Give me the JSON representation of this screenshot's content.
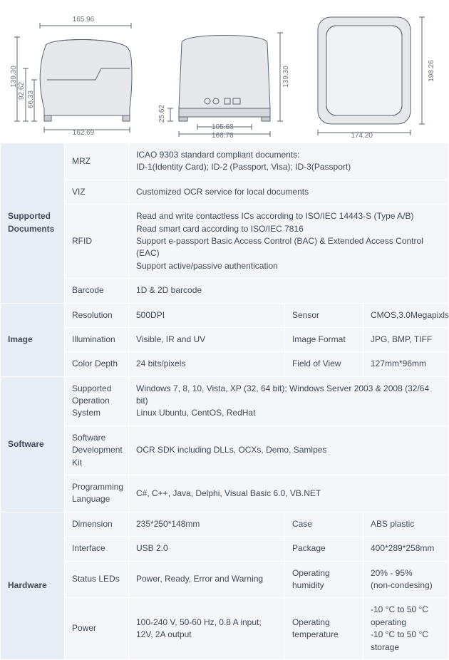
{
  "colors": {
    "cat_bg": "#e8eef5",
    "cell_bg": "#f4f6fa",
    "border": "#ffffff",
    "text": "#414b57",
    "dim_text": "#6b7280",
    "stroke": "#5a6470"
  },
  "diagrams": {
    "side": {
      "top_width": "165.96",
      "bottom_width": "162.69",
      "full_height": "139.30",
      "mid_height": "92.62",
      "inner_height": "66.33"
    },
    "front": {
      "full_width": "166.76",
      "inner_width": "105.68",
      "full_height": "139.30",
      "foot_height": "25.62"
    },
    "top": {
      "width": "174.20",
      "height": "198.26"
    }
  },
  "spec": {
    "supported_documents": {
      "cat": "Supported Documents",
      "mrz_k": "MRZ",
      "mrz_v": "ICAO 9303 standard compliant documents:\nID-1(Identity Card); ID-2 (Passport, Visa); ID-3(Passport)",
      "viz_k": "VIZ",
      "viz_v": "Customized OCR service for local documents",
      "rfid_k": "RFID",
      "rfid_v": "Read and write contactless ICs according to ISO/IEC 14443-S (Type A/B)\nRead smart card according to ISO/IEC 7816\nSupport e-passport Basic Access Control (BAC) & Extended Access Control (EAC)\nSupport active/passive authentication",
      "barcode_k": "Barcode",
      "barcode_v": "1D & 2D barcode"
    },
    "image": {
      "cat": "Image",
      "res_k": "Resolution",
      "res_v": "500DPI",
      "sensor_k": "Sensor",
      "sensor_v": "CMOS,3.0Megapixls",
      "illum_k": "Illumination",
      "illum_v": "Visible, IR and UV",
      "fmt_k": "Image Format",
      "fmt_v": "JPG, BMP, TIFF",
      "depth_k": "Color Depth",
      "depth_v": "24 bits/pixels",
      "fov_k": "Field of View",
      "fov_v": "127mm*96mm"
    },
    "software": {
      "cat": "Software",
      "os_k": "Supported Operation System",
      "os_v": "Windows 7, 8, 10, Vista, XP (32, 64 bit); Windows Server 2003 & 2008 (32/64 bit)\nLinux Ubuntu, CentOS, RedHat",
      "sdk_k": "Software Development Kit",
      "sdk_v": "OCR SDK including DLLs, OCXs, Demo, Samlpes",
      "lang_k": "Programming Language",
      "lang_v": "C#, C++, Java, Delphi, Visual Basic 6.0, VB.NET"
    },
    "hardware": {
      "cat": "Hardware",
      "dim_k": "Dimension",
      "dim_v": "235*250*148mm",
      "case_k": "Case",
      "case_v": "ABS plastic",
      "if_k": "Interface",
      "if_v": "USB 2.0",
      "pkg_k": "Package",
      "pkg_v": "400*289*258mm",
      "led_k": "Status LEDs",
      "led_v": "Power, Ready, Error and Warning",
      "hum_k": "Operating humidity",
      "hum_v": "20% - 95%\n(non-condesing)",
      "pwr_k": "Power",
      "pwr_v": "100-240 V, 50-60 Hz, 0.8 A input; 12V, 2A output",
      "temp_k": "Operating temperature",
      "temp_v": "-10 °C to 50 °C operating\n-10 °C to 50 °C storage"
    }
  }
}
